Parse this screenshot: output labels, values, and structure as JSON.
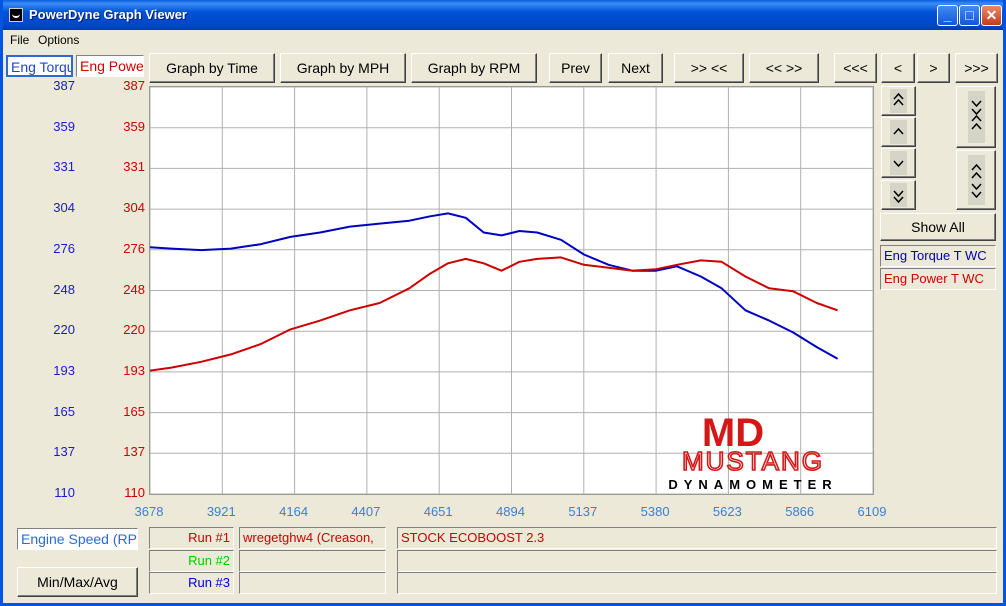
{
  "window": {
    "title": "PowerDyne Graph Viewer"
  },
  "menu": [
    "File",
    "Options"
  ],
  "tabs": {
    "torque": "Eng Torque",
    "power": "Eng Power"
  },
  "toolbar": {
    "by_time": "Graph by Time",
    "by_mph": "Graph by MPH",
    "by_rpm": "Graph by RPM",
    "prev": "Prev",
    "next": "Next",
    "zoom_in": ">> <<",
    "zoom_out": "<< >>",
    "first": "<<<",
    "back": "<",
    "fwd": ">",
    "last": ">>>"
  },
  "side": {
    "show_all": "Show All",
    "legend": [
      {
        "label": "Eng Torque T WC",
        "color": "#0000c0"
      },
      {
        "label": "Eng Power T WC",
        "color": "#cc0000"
      }
    ],
    "icons": [
      "double-up-icon",
      "up-icon",
      "down-icon",
      "double-down-icon",
      "expand-icon",
      "collapse-icon"
    ]
  },
  "bottom": {
    "x_axis_label": "Engine Speed (RP",
    "minmax": "Min/Max/Avg",
    "runs": [
      {
        "label": "Run #1",
        "color": "#cc0000"
      },
      {
        "label": "Run #2",
        "color": "#00cc00"
      },
      {
        "label": "Run #3",
        "color": "#0000cc"
      }
    ],
    "run1_name": "wregetghw4 (Creason,",
    "run1_desc": "STOCK ECOBOOST 2.3"
  },
  "logo": {
    "top": "MD",
    "name": "MUSTANG",
    "sub": "DYNAMOMETER"
  },
  "chart_data": {
    "type": "line",
    "x_ticks": [
      "3678",
      "3921",
      "4164",
      "4407",
      "4651",
      "4894",
      "5137",
      "5380",
      "5623",
      "5866",
      "6109"
    ],
    "xlim": [
      3678,
      6109
    ],
    "y_ticks_torque": [
      "387",
      "359",
      "331",
      "304",
      "276",
      "248",
      "220",
      "193",
      "165",
      "137",
      "110"
    ],
    "y_ticks_power": [
      "387",
      "359",
      "331",
      "304",
      "276",
      "248",
      "220",
      "193",
      "165",
      "137",
      "110"
    ],
    "ylim": [
      110,
      387
    ],
    "series": [
      {
        "name": "Eng Torque T WC",
        "color": "#0000c0",
        "x": [
          3678,
          3750,
          3850,
          3950,
          4050,
          4150,
          4250,
          4350,
          4450,
          4550,
          4620,
          4680,
          4740,
          4800,
          4860,
          4920,
          4980,
          5060,
          5137,
          5220,
          5300,
          5380,
          5450,
          5530,
          5600,
          5680,
          5760,
          5840,
          5920,
          5990
        ],
        "values": [
          278,
          277,
          276,
          277,
          280,
          285,
          288,
          292,
          294,
          296,
          299,
          301,
          298,
          288,
          286,
          289,
          288,
          283,
          273,
          266,
          262,
          262,
          265,
          258,
          250,
          235,
          228,
          220,
          210,
          202
        ]
      },
      {
        "name": "Eng Power T WC",
        "color": "#cc0000",
        "x": [
          3678,
          3750,
          3850,
          3950,
          4050,
          4150,
          4250,
          4350,
          4450,
          4550,
          4620,
          4680,
          4740,
          4800,
          4860,
          4920,
          4980,
          5060,
          5137,
          5220,
          5300,
          5380,
          5450,
          5530,
          5600,
          5680,
          5760,
          5840,
          5920,
          5990
        ],
        "values": [
          194,
          196,
          200,
          205,
          212,
          222,
          228,
          235,
          240,
          250,
          260,
          267,
          270,
          267,
          262,
          268,
          270,
          271,
          266,
          264,
          262,
          263,
          266,
          269,
          268,
          258,
          250,
          248,
          240,
          235
        ]
      }
    ]
  }
}
